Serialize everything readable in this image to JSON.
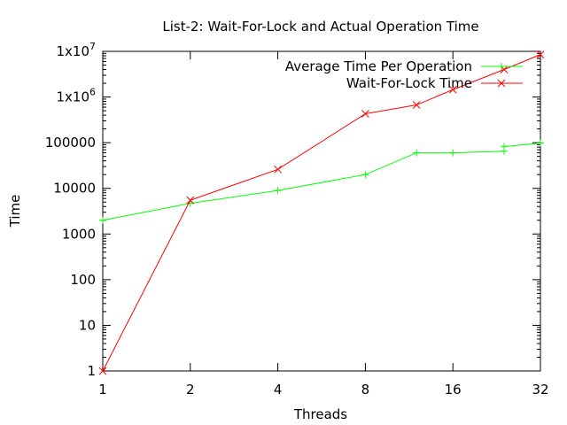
{
  "chart_data": {
    "type": "line",
    "title": "List-2: Wait-For-Lock and Actual Operation Time",
    "xlabel": "Threads",
    "ylabel": "Time",
    "x_scale": "log2",
    "y_scale": "log10",
    "xlim": [
      1,
      32
    ],
    "ylim": [
      1,
      10000000
    ],
    "x_ticks": [
      1,
      2,
      4,
      8,
      16,
      32
    ],
    "x_tick_labels": [
      "1",
      "2",
      "4",
      "8",
      "16",
      "32"
    ],
    "y_ticks": [
      1,
      10,
      100,
      1000,
      10000,
      100000,
      1000000,
      10000000
    ],
    "y_tick_labels": [
      "1",
      "10",
      "100",
      "1000",
      "10000",
      "100000",
      "1x10^6",
      "1x10^7"
    ],
    "grid": false,
    "legend_position": "top-right",
    "series": [
      {
        "name": "Average Time Per Operation",
        "color": "#00ff00",
        "marker": "plus",
        "x": [
          1,
          2,
          4,
          8,
          12,
          16,
          24,
          24,
          32
        ],
        "y": [
          2000,
          4700,
          9000,
          20000,
          60000,
          60000,
          65000,
          82000,
          98000
        ]
      },
      {
        "name": "Wait-For-Lock Time",
        "color": "#ff0000",
        "marker": "cross",
        "x": [
          1,
          2,
          4,
          8,
          12,
          16,
          24,
          32
        ],
        "y": [
          1,
          5500,
          26000,
          430000,
          670000,
          1450000,
          4000000,
          8500000
        ]
      }
    ]
  }
}
